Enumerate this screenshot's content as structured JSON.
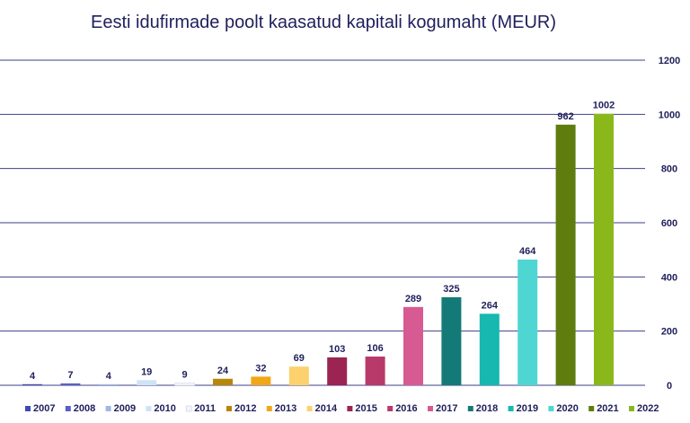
{
  "chart_data": {
    "type": "bar",
    "title": "Eesti idufirmade poolt kaasatud kapitali kogumaht (MEUR)",
    "xlabel": "",
    "ylabel": "",
    "ylim": [
      0,
      1200
    ],
    "yticks": [
      0,
      200,
      400,
      600,
      800,
      1000,
      1200
    ],
    "y_axis_position": "right",
    "grid": true,
    "legend_position": "bottom",
    "categories": [
      "2007",
      "2008",
      "2009",
      "2010",
      "2011",
      "2012",
      "2013",
      "2014",
      "2015",
      "2016",
      "2017",
      "2018",
      "2019",
      "2020",
      "2021",
      "2022"
    ],
    "values": [
      4,
      7,
      4,
      19,
      9,
      24,
      32,
      69,
      103,
      106,
      289,
      325,
      264,
      464,
      962,
      1002
    ],
    "colors": [
      "#3f4bb0",
      "#5860c8",
      "#9fb8e6",
      "#cfe3f7",
      "#f2f5fa",
      "#b8860b",
      "#f0a818",
      "#fcd16e",
      "#9b2452",
      "#b83a6a",
      "#d85a92",
      "#147a78",
      "#16b8b0",
      "#4fd6d2",
      "#5f7c0e",
      "#8ab81b"
    ]
  }
}
